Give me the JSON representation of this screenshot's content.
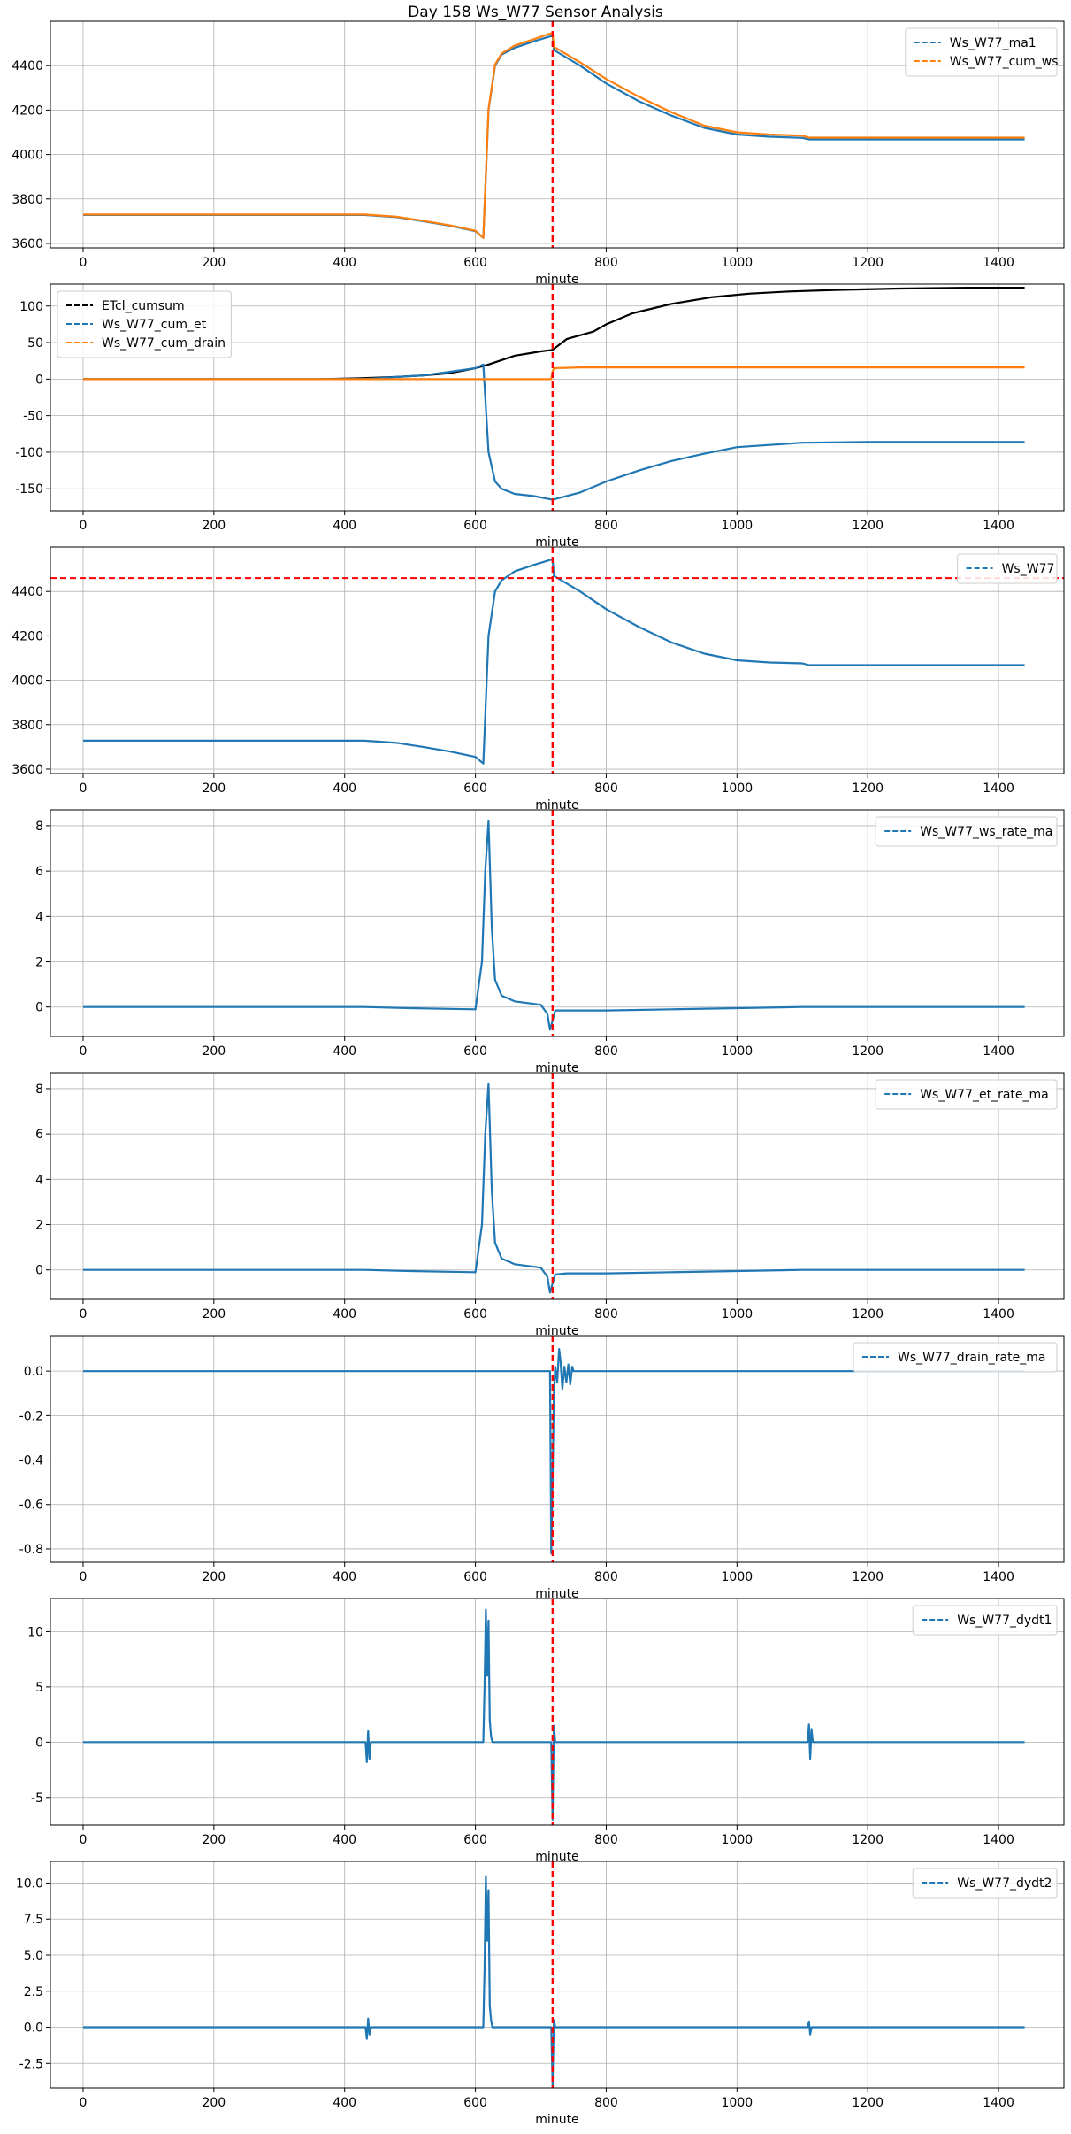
{
  "title": "Day 158 Ws_W77 Sensor Analysis",
  "colors": {
    "blue": "#1f77b4",
    "orange": "#ff7f0e",
    "black": "#000000",
    "red": "#ff0000",
    "grid": "#b0b0b0"
  },
  "chart_data": [
    {
      "type": "line",
      "xlabel": "minute",
      "xlim": [
        -50,
        1500
      ],
      "ylim": [
        3580,
        4600
      ],
      "xticks": [
        0,
        200,
        400,
        600,
        800,
        1000,
        1200,
        1400
      ],
      "yticks": [
        3600,
        3800,
        4000,
        4200,
        4400
      ],
      "ytick_labels": [
        "3600",
        "3800",
        "4000",
        "4200",
        "4400"
      ],
      "grid": true,
      "legend": "upper right",
      "vlines": [
        {
          "x": 718,
          "color": "red",
          "style": "dashed"
        }
      ],
      "hlines": [],
      "series": [
        {
          "name": "Ws_W77_ma1",
          "color": "blue",
          "style": "dashed",
          "x": [
            0,
            430,
            480,
            520,
            560,
            600,
            612,
            620,
            630,
            640,
            660,
            690,
            718,
            720,
            760,
            800,
            850,
            900,
            950,
            1000,
            1050,
            1100,
            1110,
            1200,
            1440
          ],
          "y": [
            3728,
            3728,
            3718,
            3700,
            3680,
            3655,
            3625,
            4200,
            4400,
            4450,
            4480,
            4510,
            4535,
            4470,
            4400,
            4320,
            4240,
            4175,
            4120,
            4090,
            4080,
            4075,
            4068,
            4068,
            4068
          ]
        },
        {
          "name": "Ws_W77_cum_ws",
          "color": "orange",
          "style": "dashed",
          "x": [
            0,
            430,
            480,
            520,
            560,
            600,
            612,
            620,
            630,
            640,
            660,
            690,
            718,
            720,
            760,
            800,
            850,
            900,
            950,
            1000,
            1050,
            1100,
            1110,
            1200,
            1440
          ],
          "y": [
            3730,
            3730,
            3720,
            3702,
            3682,
            3657,
            3625,
            4205,
            4405,
            4455,
            4490,
            4520,
            4548,
            4485,
            4415,
            4340,
            4260,
            4190,
            4130,
            4100,
            4090,
            4085,
            4076,
            4076,
            4076
          ]
        }
      ]
    },
    {
      "type": "line",
      "xlabel": "minute",
      "xlim": [
        -50,
        1500
      ],
      "ylim": [
        -180,
        130
      ],
      "xticks": [
        0,
        200,
        400,
        600,
        800,
        1000,
        1200,
        1400
      ],
      "yticks": [
        -150,
        -100,
        -50,
        0,
        50,
        100
      ],
      "ytick_labels": [
        "-150",
        "-100",
        "-50",
        "0",
        "50",
        "100"
      ],
      "grid": true,
      "legend": "upper left",
      "vlines": [
        {
          "x": 718,
          "color": "red",
          "style": "dashed"
        }
      ],
      "hlines": [],
      "series": [
        {
          "name": "ETcl_cumsum",
          "color": "black",
          "style": "dashed",
          "x": [
            0,
            360,
            420,
            480,
            520,
            560,
            600,
            620,
            660,
            700,
            718,
            740,
            780,
            800,
            840,
            900,
            960,
            1020,
            1080,
            1150,
            1250,
            1350,
            1440
          ],
          "y": [
            0,
            0,
            1,
            3,
            5,
            8,
            15,
            20,
            32,
            38,
            40,
            55,
            65,
            75,
            90,
            103,
            112,
            117,
            120,
            122,
            124,
            125,
            125
          ]
        },
        {
          "name": "Ws_W77_cum_et",
          "color": "blue",
          "style": "dashed",
          "x": [
            0,
            430,
            480,
            520,
            560,
            600,
            612,
            620,
            630,
            640,
            660,
            690,
            718,
            760,
            800,
            850,
            900,
            950,
            1000,
            1050,
            1100,
            1200,
            1440
          ],
          "y": [
            0,
            0,
            3,
            5,
            10,
            15,
            20,
            -100,
            -140,
            -150,
            -157,
            -160,
            -165,
            -155,
            -140,
            -125,
            -112,
            -102,
            -93,
            -90,
            -87,
            -86,
            -86
          ]
        },
        {
          "name": "Ws_W77_cum_drain",
          "color": "orange",
          "style": "dashed",
          "x": [
            0,
            716,
            718,
            720,
            760,
            1440
          ],
          "y": [
            0,
            0,
            10,
            15,
            16,
            16
          ]
        }
      ]
    },
    {
      "type": "line",
      "xlabel": "minute",
      "xlim": [
        -50,
        1500
      ],
      "ylim": [
        3580,
        4600
      ],
      "xticks": [
        0,
        200,
        400,
        600,
        800,
        1000,
        1200,
        1400
      ],
      "yticks": [
        3600,
        3800,
        4000,
        4200,
        4400
      ],
      "ytick_labels": [
        "3600",
        "3800",
        "4000",
        "4200",
        "4400"
      ],
      "grid": true,
      "legend": "upper right",
      "vlines": [
        {
          "x": 718,
          "color": "red",
          "style": "dashed"
        }
      ],
      "hlines": [
        {
          "y": 4460,
          "color": "red",
          "style": "dashed"
        }
      ],
      "series": [
        {
          "name": "Ws_W77",
          "color": "blue",
          "style": "dashed",
          "x": [
            0,
            430,
            480,
            520,
            560,
            600,
            612,
            620,
            630,
            640,
            660,
            690,
            718,
            720,
            760,
            800,
            850,
            900,
            950,
            1000,
            1050,
            1100,
            1110,
            1200,
            1440
          ],
          "y": [
            3728,
            3728,
            3718,
            3700,
            3680,
            3655,
            3625,
            4200,
            4400,
            4450,
            4490,
            4520,
            4545,
            4470,
            4400,
            4320,
            4240,
            4170,
            4120,
            4090,
            4080,
            4076,
            4068,
            4068,
            4068
          ]
        }
      ]
    },
    {
      "type": "line",
      "xlabel": "minute",
      "xlim": [
        -50,
        1500
      ],
      "ylim": [
        -1.3,
        8.7
      ],
      "xticks": [
        0,
        200,
        400,
        600,
        800,
        1000,
        1200,
        1400
      ],
      "yticks": [
        0,
        2,
        4,
        6,
        8
      ],
      "ytick_labels": [
        "0",
        "2",
        "4",
        "6",
        "8"
      ],
      "grid": true,
      "legend": "upper right",
      "vlines": [
        {
          "x": 718,
          "color": "red",
          "style": "dashed"
        }
      ],
      "hlines": [],
      "series": [
        {
          "name": "Ws_W77_ws_rate_ma",
          "color": "blue",
          "style": "dashed",
          "x": [
            0,
            430,
            500,
            560,
            600,
            610,
            615,
            620,
            625,
            630,
            640,
            660,
            700,
            710,
            714,
            718,
            722,
            740,
            800,
            900,
            1000,
            1100,
            1200,
            1440
          ],
          "y": [
            0,
            0,
            -0.05,
            -0.08,
            -0.1,
            2.0,
            6.0,
            8.2,
            3.5,
            1.2,
            0.5,
            0.25,
            0.1,
            -0.3,
            -1.0,
            -0.6,
            -0.15,
            -0.15,
            -0.15,
            -0.1,
            -0.05,
            0,
            0,
            0
          ]
        }
      ]
    },
    {
      "type": "line",
      "xlabel": "minute",
      "xlim": [
        -50,
        1500
      ],
      "ylim": [
        -1.3,
        8.7
      ],
      "xticks": [
        0,
        200,
        400,
        600,
        800,
        1000,
        1200,
        1400
      ],
      "yticks": [
        0,
        2,
        4,
        6,
        8
      ],
      "ytick_labels": [
        "0",
        "2",
        "4",
        "6",
        "8"
      ],
      "grid": true,
      "legend": "upper right",
      "vlines": [
        {
          "x": 718,
          "color": "red",
          "style": "dashed"
        }
      ],
      "hlines": [],
      "series": [
        {
          "name": "Ws_W77_et_rate_ma",
          "color": "blue",
          "style": "dashed",
          "x": [
            0,
            430,
            500,
            560,
            600,
            610,
            615,
            620,
            625,
            630,
            640,
            660,
            700,
            710,
            714,
            718,
            722,
            740,
            800,
            900,
            1000,
            1100,
            1200,
            1440
          ],
          "y": [
            0,
            0,
            -0.05,
            -0.08,
            -0.1,
            2.0,
            6.0,
            8.2,
            3.5,
            1.2,
            0.5,
            0.25,
            0.1,
            -0.3,
            -1.0,
            -0.6,
            -0.2,
            -0.15,
            -0.15,
            -0.1,
            -0.05,
            0,
            0,
            0
          ]
        }
      ]
    },
    {
      "type": "line",
      "xlabel": "minute",
      "xlim": [
        -50,
        1500
      ],
      "ylim": [
        -0.86,
        0.16
      ],
      "xticks": [
        0,
        200,
        400,
        600,
        800,
        1000,
        1200,
        1400
      ],
      "yticks": [
        -0.8,
        -0.6,
        -0.4,
        -0.2,
        0.0
      ],
      "ytick_labels": [
        "-0.8",
        "-0.6",
        "-0.4",
        "-0.2",
        "0.0"
      ],
      "grid": true,
      "legend": "upper right",
      "vlines": [
        {
          "x": 718,
          "color": "red",
          "style": "dashed"
        }
      ],
      "hlines": [],
      "series": [
        {
          "name": "Ws_W77_drain_rate_ma",
          "color": "blue",
          "style": "dashed",
          "x": [
            0,
            714,
            716,
            718,
            720,
            722,
            725,
            728,
            730,
            733,
            736,
            739,
            742,
            745,
            748,
            750,
            1440
          ],
          "y": [
            0,
            0,
            -0.82,
            -0.5,
            -0.1,
            0.02,
            -0.05,
            0.1,
            0.05,
            -0.08,
            0.02,
            -0.05,
            0.03,
            -0.06,
            0.02,
            0,
            0
          ]
        }
      ]
    },
    {
      "type": "line",
      "xlabel": "minute",
      "xlim": [
        -50,
        1500
      ],
      "ylim": [
        -7.5,
        13
      ],
      "xticks": [
        0,
        200,
        400,
        600,
        800,
        1000,
        1200,
        1400
      ],
      "yticks": [
        -5,
        0,
        5,
        10
      ],
      "ytick_labels": [
        "-5",
        "0",
        "5",
        "10"
      ],
      "grid": true,
      "legend": "upper right",
      "vlines": [
        {
          "x": 718,
          "color": "red",
          "style": "dashed"
        }
      ],
      "hlines": [],
      "series": [
        {
          "name": "Ws_W77_dydt1",
          "color": "blue",
          "style": "dashed",
          "x": [
            0,
            432,
            434,
            436,
            438,
            440,
            600,
            612,
            614,
            616,
            618,
            620,
            622,
            624,
            626,
            716,
            718,
            720,
            722,
            1108,
            1110,
            1112,
            1114,
            1116,
            1440
          ],
          "y": [
            0,
            0,
            -1.8,
            1.0,
            -1.5,
            0,
            0,
            0,
            5.0,
            12.0,
            6.0,
            11.0,
            2.0,
            0.5,
            0,
            0,
            -7.0,
            1.5,
            0,
            0,
            1.6,
            -1.5,
            1.2,
            0,
            0
          ]
        }
      ]
    },
    {
      "type": "line",
      "xlabel": "minute",
      "xlim": [
        -50,
        1500
      ],
      "ylim": [
        -4.2,
        11.5
      ],
      "xticks": [
        0,
        200,
        400,
        600,
        800,
        1000,
        1200,
        1400
      ],
      "yticks": [
        -2.5,
        0.0,
        2.5,
        5.0,
        7.5,
        10.0
      ],
      "ytick_labels": [
        "-2.5",
        "0.0",
        "2.5",
        "5.0",
        "7.5",
        "10.0"
      ],
      "grid": true,
      "legend": "upper right",
      "vlines": [
        {
          "x": 718,
          "color": "red",
          "style": "dashed"
        }
      ],
      "hlines": [],
      "series": [
        {
          "name": "Ws_W77_dydt2",
          "color": "blue",
          "style": "dashed",
          "x": [
            0,
            432,
            434,
            436,
            438,
            440,
            612,
            614,
            616,
            618,
            620,
            622,
            624,
            626,
            716,
            718,
            720,
            722,
            1108,
            1110,
            1112,
            1114,
            1440
          ],
          "y": [
            0,
            0,
            -0.8,
            0.6,
            -0.5,
            0,
            0,
            4.0,
            10.5,
            6.0,
            9.5,
            1.5,
            0.5,
            0,
            0,
            -4.0,
            0.5,
            0,
            0,
            0.4,
            -0.5,
            0,
            0
          ]
        }
      ]
    }
  ]
}
